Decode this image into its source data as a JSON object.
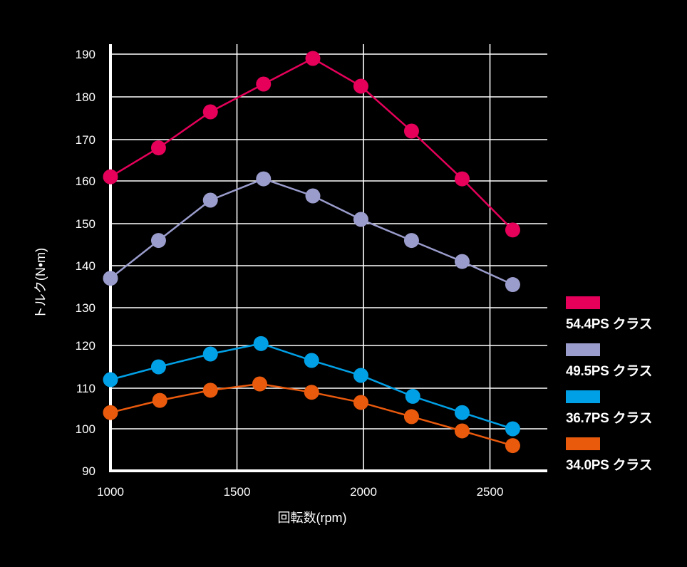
{
  "chart_data": {
    "type": "line",
    "xlabel": "回転数(rpm)",
    "ylabel": "トルク(N•m)",
    "xlim": [
      1000,
      2700
    ],
    "ylim": [
      90,
      190
    ],
    "xticks": [
      1000,
      1500,
      2000,
      2500
    ],
    "yticks": [
      90,
      100,
      110,
      120,
      130,
      140,
      150,
      160,
      170,
      180,
      190
    ],
    "x": [
      1000,
      1200,
      1400,
      1600,
      1800,
      2000,
      2200,
      2400,
      2600
    ],
    "grid": true,
    "legend_position": "right",
    "series": [
      {
        "name": "54.4PS クラス",
        "color": "#e6005a",
        "x": [
          1000,
          1190,
          1395,
          1605,
          1800,
          1990,
          2190,
          2390,
          2590
        ],
        "values": [
          161,
          168,
          176.5,
          183,
          189,
          182.5,
          172,
          160.5,
          148.5
        ]
      },
      {
        "name": "49.5PS クラス",
        "color": "#9a9ccc",
        "x": [
          1000,
          1190,
          1395,
          1605,
          1800,
          1990,
          2190,
          2390,
          2590
        ],
        "values": [
          137,
          146,
          155.5,
          160.5,
          156.5,
          151,
          146,
          141,
          135.5
        ]
      },
      {
        "name": "36.7PS クラス",
        "color": "#00a0e6",
        "x": [
          1000,
          1190,
          1395,
          1595,
          1795,
          1990,
          2195,
          2390,
          2590
        ],
        "values": [
          112,
          115,
          118,
          120.5,
          116.5,
          113,
          108,
          104,
          100
        ]
      },
      {
        "name": "34.0PS クラス",
        "color": "#ea5a0d",
        "x": [
          1000,
          1195,
          1395,
          1590,
          1795,
          1990,
          2190,
          2390,
          2590
        ],
        "values": [
          104,
          107,
          109.5,
          111,
          109,
          106.5,
          103,
          99.5,
          96
        ]
      }
    ]
  }
}
